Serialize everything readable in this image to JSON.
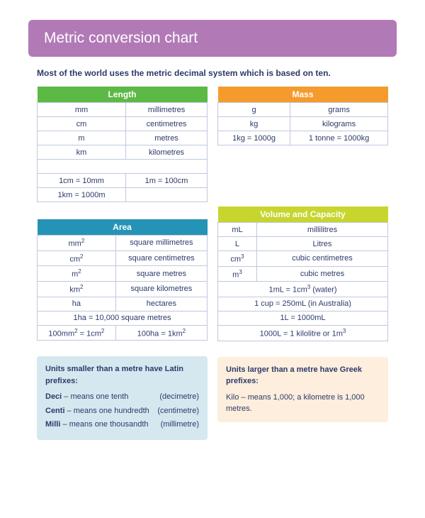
{
  "banner": {
    "text": "Metric conversion chart",
    "bg": "#b279b7"
  },
  "subtitle": {
    "text": "Most of the world uses the metric decimal system which is based on ten.",
    "color": "#2b3a6b"
  },
  "colors": {
    "length_header": "#5cb946",
    "mass_header": "#f59b2d",
    "area_header": "#2493b6",
    "volume_header": "#c7d52e",
    "latin_panel_bg": "#d5e8ef",
    "greek_panel_bg": "#fdeedd",
    "row_border": "#bfc8dd"
  },
  "tables": {
    "length": {
      "title": "Length",
      "rows": [
        [
          "mm",
          "millimetres"
        ],
        [
          "cm",
          "centimetres"
        ],
        [
          "m",
          "metres"
        ],
        [
          "km",
          "kilometres"
        ]
      ],
      "extras": [
        [
          "1cm = 10mm",
          "1m = 100cm"
        ],
        [
          "1km = 1000m",
          ""
        ]
      ]
    },
    "mass": {
      "title": "Mass",
      "rows": [
        [
          "g",
          "grams"
        ],
        [
          "kg",
          "kilograms"
        ],
        [
          "1kg = 1000g",
          "1 tonne = 1000kg"
        ]
      ]
    },
    "area": {
      "title": "Area",
      "rows": [
        [
          "mm²",
          "square millimetres"
        ],
        [
          "cm²",
          "square centimetres"
        ],
        [
          "m²",
          "square metres"
        ],
        [
          "km²",
          "square kilometres"
        ],
        [
          "ha",
          "hectares"
        ]
      ],
      "extras": [
        [
          "1ha = 10,000 square metres"
        ],
        [
          "100mm² = 1cm²",
          "100ha = 1km²"
        ]
      ]
    },
    "volume": {
      "title": "Volume and Capacity",
      "rows": [
        [
          "mL",
          "millilitres"
        ],
        [
          "L",
          "Litres"
        ],
        [
          "cm³",
          "cubic centimetres"
        ],
        [
          "m³",
          "cubic metres"
        ]
      ],
      "extras": [
        [
          "1mL = 1cm³ (water)"
        ],
        [
          "1 cup = 250mL  (in Australia)"
        ],
        [
          "1L = 1000mL"
        ],
        [
          "1000L = 1 kilolitre or 1m³"
        ]
      ]
    }
  },
  "panels": {
    "latin": {
      "title": "Units smaller than a metre have Latin prefixes:",
      "items": [
        {
          "prefix": "Deci",
          "desc": " – means one tenth",
          "unit": "(decimetre)"
        },
        {
          "prefix": "Centi",
          "desc": " – means one hundredth",
          "unit": "(centimetre)"
        },
        {
          "prefix": "Milli",
          "desc": " – means one thousandth",
          "unit": "(millimetre)"
        }
      ]
    },
    "greek": {
      "title": "Units larger than a metre have Greek prefixes:",
      "text_prefix": "Kilo",
      "text_rest": " – means 1,000; a kilometre is 1,000 metres."
    }
  }
}
